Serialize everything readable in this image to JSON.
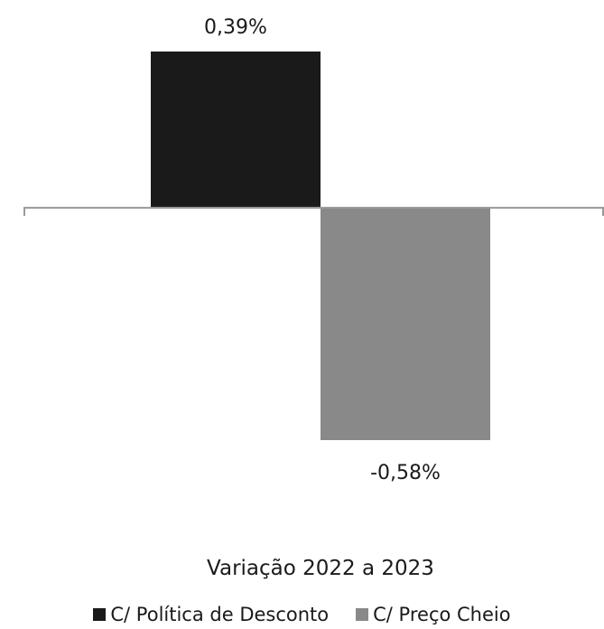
{
  "chart_data": {
    "type": "bar",
    "categories": [
      "Variação 2022 a 2023"
    ],
    "series": [
      {
        "name": "C/ Política de Desconto",
        "values": [
          0.39
        ],
        "label": "0,39%",
        "color": "#1a1a1a"
      },
      {
        "name": "C/ Preço Cheio",
        "values": [
          -0.58
        ],
        "label": "-0,58%",
        "color": "#898989"
      }
    ],
    "ylim": [
      -0.58,
      0.39
    ],
    "grid": false,
    "legend_position": "bottom",
    "axis_color": "#999999"
  }
}
